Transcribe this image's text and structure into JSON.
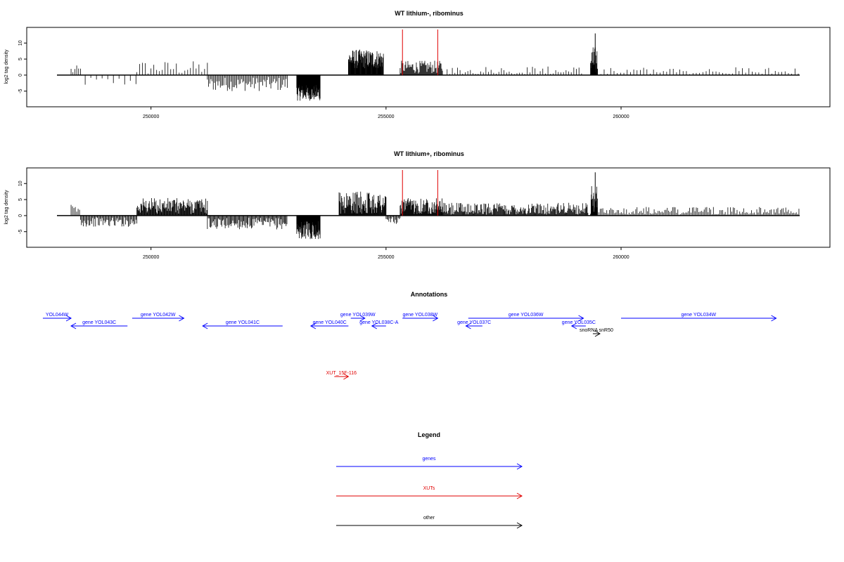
{
  "chart_data": [
    {
      "type": "bar",
      "title": "WT lithium-, ribominus",
      "ylabel": "log2 tag density",
      "xlabel": "",
      "xlim": [
        247700,
        263900
      ],
      "ylim": [
        -9,
        14
      ],
      "xticks": [
        250000,
        255000,
        260000
      ],
      "xtick_labels": [
        "250000",
        "255000",
        "260000"
      ],
      "yticks": [
        -5,
        0,
        5,
        10
      ],
      "ytick_labels": [
        "-5",
        "0",
        "5",
        "10"
      ],
      "segments": [
        {
          "start": 248300,
          "end": 248500,
          "mean": 1.5,
          "amp": 1.5,
          "step": 40
        },
        {
          "start": 248600,
          "end": 249700,
          "mean": -2,
          "amp": 1.5,
          "step": 120
        },
        {
          "start": 249700,
          "end": 251200,
          "mean": 2.2,
          "amp": 2.2,
          "step": 60
        },
        {
          "start": 251200,
          "end": 252900,
          "mean": -2.8,
          "amp": 2.2,
          "step": 25
        },
        {
          "start": 253100,
          "end": 253600,
          "mean": -5.5,
          "amp": 2.5,
          "step": 6
        },
        {
          "start": 254200,
          "end": 254950,
          "mean": 5,
          "amp": 3,
          "step": 8
        },
        {
          "start": 255300,
          "end": 256200,
          "mean": 2.5,
          "amp": 2,
          "step": 15
        },
        {
          "start": 256300,
          "end": 259200,
          "mean": 1,
          "amp": 1.8,
          "step": 55
        },
        {
          "start": 259350,
          "end": 259500,
          "mean": 4,
          "amp": 5,
          "step": 6
        },
        {
          "start": 259500,
          "end": 263800,
          "mean": 1,
          "amp": 1.5,
          "step": 70
        }
      ],
      "peak": {
        "x": 259450,
        "y": 13
      },
      "markers": [
        255350,
        256100
      ],
      "marker_color": "#e00000"
    },
    {
      "type": "bar",
      "title": "WT lithium+, ribominus",
      "ylabel": "log2 tag density",
      "xlabel": "",
      "xlim": [
        247700,
        263900
      ],
      "ylim": [
        -9,
        14
      ],
      "xticks": [
        250000,
        255000,
        260000
      ],
      "xtick_labels": [
        "250000",
        "255000",
        "260000"
      ],
      "yticks": [
        -5,
        0,
        5,
        10
      ],
      "ytick_labels": [
        "-5",
        "0",
        "5",
        "10"
      ],
      "segments": [
        {
          "start": 248300,
          "end": 248500,
          "mean": 1.8,
          "amp": 1.8,
          "step": 30
        },
        {
          "start": 248500,
          "end": 249700,
          "mean": -2,
          "amp": 1.5,
          "step": 20
        },
        {
          "start": 249700,
          "end": 251200,
          "mean": 3,
          "amp": 2.5,
          "step": 12
        },
        {
          "start": 251200,
          "end": 252900,
          "mean": -2.5,
          "amp": 1.8,
          "step": 18
        },
        {
          "start": 253100,
          "end": 253600,
          "mean": -4.5,
          "amp": 2.8,
          "step": 6
        },
        {
          "start": 254000,
          "end": 255000,
          "mean": 4,
          "amp": 3.5,
          "step": 10
        },
        {
          "start": 255000,
          "end": 255300,
          "mean": -1.5,
          "amp": 1.5,
          "step": 20
        },
        {
          "start": 255300,
          "end": 256200,
          "mean": 3,
          "amp": 2.5,
          "step": 10
        },
        {
          "start": 256200,
          "end": 259300,
          "mean": 2,
          "amp": 2,
          "step": 14
        },
        {
          "start": 259350,
          "end": 259500,
          "mean": 5,
          "amp": 5,
          "step": 6
        },
        {
          "start": 259500,
          "end": 263800,
          "mean": 1.2,
          "amp": 1.5,
          "step": 28
        }
      ],
      "peak": {
        "x": 259450,
        "y": 13.5
      },
      "markers": [
        255350,
        256100
      ],
      "marker_color": "#e00000"
    }
  ],
  "annotations": {
    "title": "Annotations",
    "features": [
      {
        "label": "YOL044W",
        "start": 247700,
        "end": 248300,
        "strand": "+",
        "row": 0,
        "color": "#0000ff"
      },
      {
        "label": "gene YOL043C",
        "start": 248300,
        "end": 249500,
        "strand": "-",
        "row": 1,
        "color": "#0000ff"
      },
      {
        "label": "gene YOL042W",
        "start": 249600,
        "end": 250700,
        "strand": "+",
        "row": 0,
        "color": "#0000ff"
      },
      {
        "label": "gene YOL041C",
        "start": 251100,
        "end": 252800,
        "strand": "-",
        "row": 1,
        "color": "#0000ff"
      },
      {
        "label": "gene YOL040C",
        "start": 253400,
        "end": 254200,
        "strand": "-",
        "row": 1,
        "color": "#0000ff"
      },
      {
        "label": "gene YOL039W",
        "start": 254250,
        "end": 254550,
        "strand": "+",
        "row": 0,
        "color": "#0000ff"
      },
      {
        "label": "gene YOL038C-A",
        "start": 254700,
        "end": 255000,
        "strand": "-",
        "row": 1,
        "color": "#0000ff"
      },
      {
        "label": "gene YOL038W",
        "start": 255350,
        "end": 256100,
        "strand": "+",
        "row": 0,
        "color": "#0000ff"
      },
      {
        "label": "gene YOL037C",
        "start": 256700,
        "end": 257050,
        "strand": "-",
        "row": 1,
        "color": "#0000ff"
      },
      {
        "label": "gene YOL036W",
        "start": 256750,
        "end": 259200,
        "strand": "+",
        "row": 0,
        "color": "#0000ff"
      },
      {
        "label": "gene YOL035C",
        "start": 258950,
        "end": 259250,
        "strand": "-",
        "row": 1,
        "color": "#0000ff"
      },
      {
        "label": "snoRNA snR50",
        "start": 259400,
        "end": 259550,
        "strand": "+",
        "row": 2,
        "color": "#000000"
      },
      {
        "label": "gene YOL034W",
        "start": 260000,
        "end": 263300,
        "strand": "+",
        "row": 0,
        "color": "#0000ff"
      },
      {
        "label": "XUT_15F-116",
        "start": 253900,
        "end": 254200,
        "strand": "+",
        "row": 5,
        "color": "#e00000"
      }
    ]
  },
  "legend": {
    "title": "Legend",
    "items": [
      {
        "label": "genes",
        "color": "#0000ff"
      },
      {
        "label": "XUTs",
        "color": "#e00000"
      },
      {
        "label": "other",
        "color": "#000000"
      }
    ]
  }
}
